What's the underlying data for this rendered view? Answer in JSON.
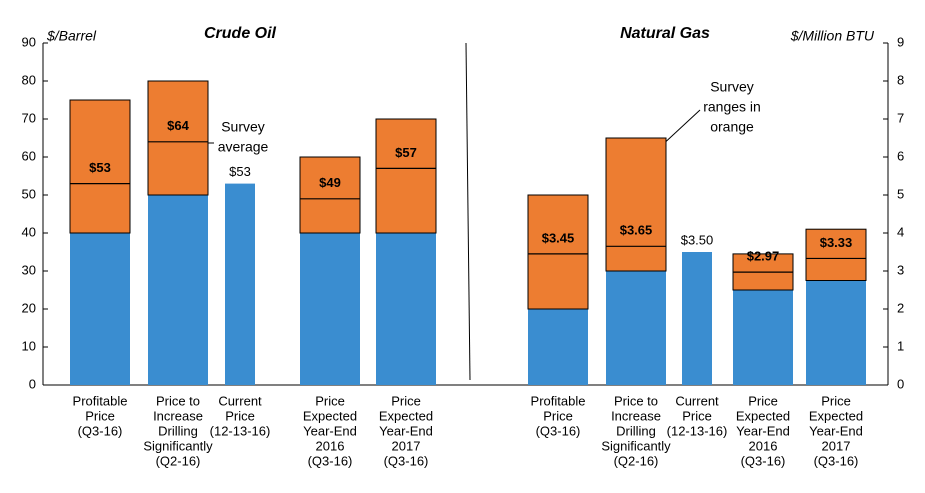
{
  "chart_data": [
    {
      "type": "bar",
      "title": "Crude Oil",
      "y_label": "$/Barrel",
      "categories": [
        [
          "Profitable",
          "Price",
          "(Q3-16)"
        ],
        [
          "Price to",
          "Increase",
          "Drilling",
          "Significantly",
          "(Q2-16)"
        ],
        [
          "Current",
          "Price",
          "(12-13-16)"
        ],
        [
          "Price",
          "Expected",
          "Year-End",
          "2016",
          "(Q3-16)"
        ],
        [
          "Price",
          "Expected",
          "Year-End",
          "2017",
          "(Q3-16)"
        ]
      ],
      "series": [
        {
          "color": "#3a8dd0",
          "values": [
            40,
            50,
            53,
            40,
            40
          ],
          "value_labels": [
            null,
            null,
            "$53",
            null,
            null
          ]
        },
        {
          "color": "#ed7d31",
          "values": [
            35,
            30,
            null,
            20,
            30
          ]
        }
      ],
      "average": {
        "values": [
          53,
          64,
          null,
          49,
          57
        ],
        "value_labels": [
          "$53",
          "$64",
          null,
          "$49",
          "$57"
        ]
      },
      "annotation": [
        "Survey",
        "average"
      ],
      "ylim": [
        0,
        90
      ],
      "yticks": [
        0,
        10,
        20,
        30,
        40,
        50,
        60,
        70,
        80,
        90
      ],
      "axis_side": "left"
    },
    {
      "type": "bar",
      "title": "Natural Gas",
      "y_label": "$/Million BTU",
      "categories": [
        [
          "Profitable",
          "Price",
          "(Q3-16)"
        ],
        [
          "Price to",
          "Increase",
          "Drilling",
          "Significantly",
          "(Q2-16)"
        ],
        [
          "Current",
          "Price",
          "(12-13-16)"
        ],
        [
          "Price",
          "Expected",
          "Year-End",
          "2016",
          "(Q3-16)"
        ],
        [
          "Price",
          "Expected",
          "Year-End",
          "2017",
          "(Q3-16)"
        ]
      ],
      "series": [
        {
          "color": "#3a8dd0",
          "values": [
            2.0,
            3.0,
            3.5,
            2.5,
            2.75
          ],
          "value_labels": [
            null,
            null,
            "$3.50",
            null,
            null
          ]
        },
        {
          "color": "#ed7d31",
          "values": [
            3.0,
            3.5,
            null,
            0.95,
            1.35
          ]
        }
      ],
      "average": {
        "values": [
          3.45,
          3.65,
          null,
          2.97,
          3.33
        ],
        "value_labels": [
          "$3.45",
          "$3.65",
          null,
          "$2.97",
          "$3.33"
        ]
      },
      "annotation": [
        "Survey",
        "ranges in",
        "orange"
      ],
      "ylim": [
        0,
        9
      ],
      "yticks": [
        0,
        1,
        2,
        3,
        4,
        5,
        6,
        7,
        8,
        9
      ],
      "axis_side": "right"
    }
  ]
}
